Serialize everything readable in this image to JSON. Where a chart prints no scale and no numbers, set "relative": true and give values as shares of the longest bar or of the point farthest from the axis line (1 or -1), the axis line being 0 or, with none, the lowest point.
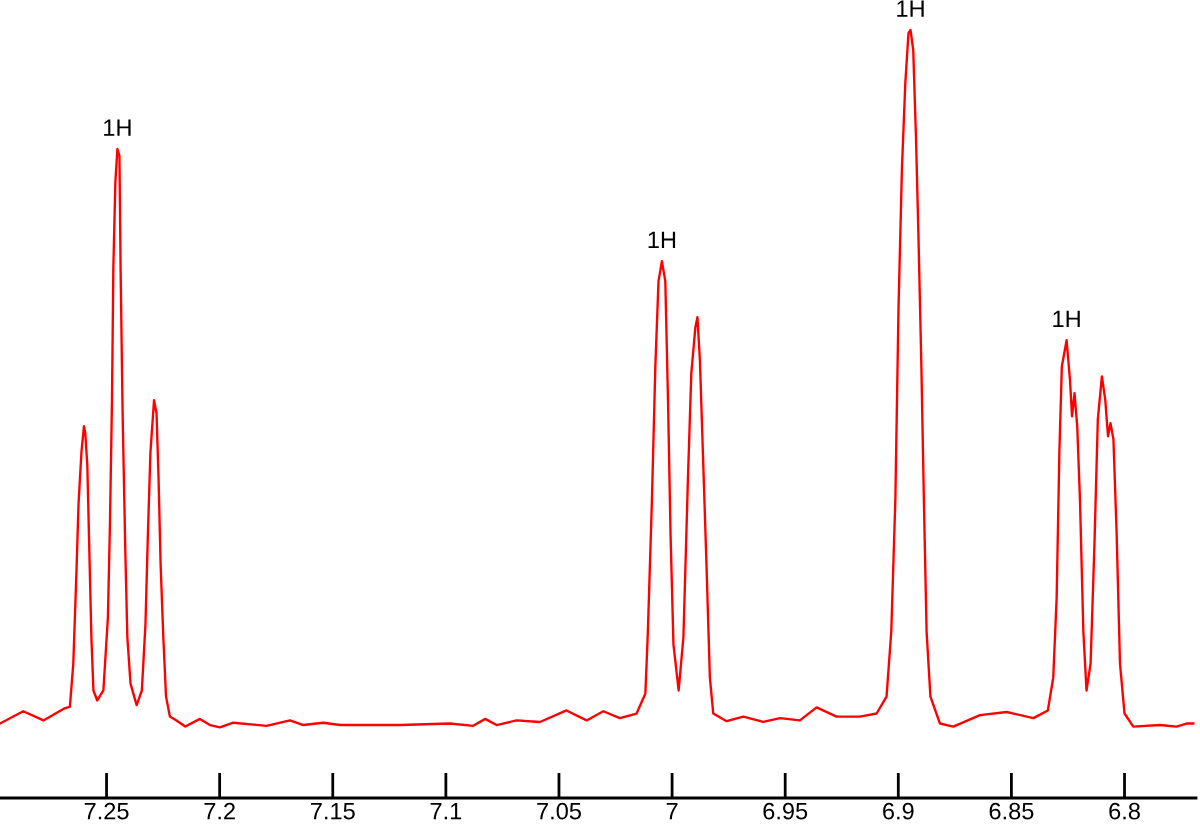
{
  "chart_data": {
    "type": "line",
    "relative": true,
    "xlim": [
      7.2971,
      6.7684
    ],
    "xticks": [
      7.25,
      7.2,
      7.15,
      7.1,
      7.05,
      7,
      6.95,
      6.9,
      6.85,
      6.8
    ],
    "annotations": [
      {
        "text": "1H",
        "x": 7.2452,
        "y": 0.845
      },
      {
        "text": "1H",
        "x": 7.0045,
        "y": 0.699
      },
      {
        "text": "1H",
        "x": 6.8946,
        "y": 1.0
      },
      {
        "text": "1H",
        "x": 6.8256,
        "y": 0.596
      }
    ],
    "series": [
      {
        "color": "#ff0000",
        "x": [
          7.2971,
          7.2868,
          7.2779,
          7.2691,
          7.2662,
          7.2647,
          7.2633,
          7.2624,
          7.2611,
          7.26,
          7.2594,
          7.2585,
          7.2576,
          7.2567,
          7.2558,
          7.2541,
          7.2514,
          7.2494,
          7.2485,
          7.2476,
          7.247,
          7.2461,
          7.2452,
          7.2443,
          7.2438,
          7.2429,
          7.2417,
          7.2408,
          7.2394,
          7.2367,
          7.2344,
          7.2328,
          7.2317,
          7.2306,
          7.229,
          7.2279,
          7.227,
          7.2261,
          7.2249,
          7.2237,
          7.222,
          7.2191,
          7.2152,
          7.2087,
          7.2043,
          7.1999,
          7.194,
          7.1793,
          7.1689,
          7.163,
          7.1542,
          7.1468,
          7.1203,
          7.0982,
          7.0879,
          7.0826,
          7.0776,
          7.0688,
          7.0584,
          7.0467,
          7.0378,
          7.0304,
          7.0231,
          7.0157,
          7.0118,
          7.0107,
          7.0089,
          7.0074,
          7.006,
          7.0045,
          7.003,
          7.0018,
          7.0007,
          6.9994,
          6.9971,
          6.995,
          6.993,
          6.9915,
          6.9897,
          6.9888,
          6.9877,
          6.9862,
          6.9848,
          6.9833,
          6.9818,
          6.9759,
          6.9685,
          6.9597,
          6.9523,
          6.9435,
          6.9361,
          6.9273,
          6.917,
          6.9096,
          6.9052,
          6.9031,
          6.9013,
          6.8999,
          6.8984,
          6.8969,
          6.8955,
          6.8946,
          6.8934,
          6.8922,
          6.8911,
          6.8898,
          6.8887,
          6.8875,
          6.8858,
          6.8816,
          6.8757,
          6.8639,
          6.8521,
          6.8403,
          6.8339,
          6.8315,
          6.83,
          6.8288,
          6.8277,
          6.8256,
          6.8241,
          6.8232,
          6.8221,
          6.8209,
          6.8197,
          6.8182,
          6.8168,
          6.815,
          6.8133,
          6.8118,
          6.81,
          6.8085,
          6.8073,
          6.8062,
          6.8049,
          6.8035,
          6.802,
          6.8,
          6.7961,
          6.7843,
          6.777,
          6.7726,
          6.7696
        ],
        "values": [
          0.097,
          0.113,
          0.101,
          0.116,
          0.119,
          0.175,
          0.295,
          0.382,
          0.45,
          0.484,
          0.475,
          0.433,
          0.321,
          0.209,
          0.14,
          0.127,
          0.14,
          0.235,
          0.356,
          0.518,
          0.69,
          0.802,
          0.845,
          0.836,
          0.691,
          0.501,
          0.321,
          0.209,
          0.149,
          0.121,
          0.14,
          0.226,
          0.346,
          0.45,
          0.518,
          0.501,
          0.415,
          0.304,
          0.209,
          0.132,
          0.106,
          0.101,
          0.093,
          0.103,
          0.095,
          0.092,
          0.098,
          0.094,
          0.101,
          0.095,
          0.098,
          0.095,
          0.095,
          0.097,
          0.094,
          0.103,
          0.095,
          0.101,
          0.099,
          0.114,
          0.101,
          0.113,
          0.104,
          0.11,
          0.136,
          0.217,
          0.389,
          0.562,
          0.673,
          0.699,
          0.673,
          0.518,
          0.346,
          0.2,
          0.14,
          0.209,
          0.415,
          0.553,
          0.613,
          0.626,
          0.57,
          0.433,
          0.304,
          0.157,
          0.11,
          0.1,
          0.106,
          0.099,
          0.104,
          0.101,
          0.118,
          0.106,
          0.106,
          0.11,
          0.132,
          0.217,
          0.389,
          0.639,
          0.819,
          0.931,
          0.996,
          1.0,
          0.974,
          0.862,
          0.733,
          0.562,
          0.389,
          0.217,
          0.132,
          0.097,
          0.093,
          0.108,
          0.112,
          0.104,
          0.114,
          0.157,
          0.261,
          0.45,
          0.562,
          0.596,
          0.544,
          0.497,
          0.527,
          0.484,
          0.389,
          0.217,
          0.14,
          0.175,
          0.329,
          0.493,
          0.549,
          0.518,
          0.471,
          0.488,
          0.467,
          0.346,
          0.175,
          0.11,
          0.093,
          0.095,
          0.093,
          0.097,
          0.097
        ]
      }
    ]
  }
}
